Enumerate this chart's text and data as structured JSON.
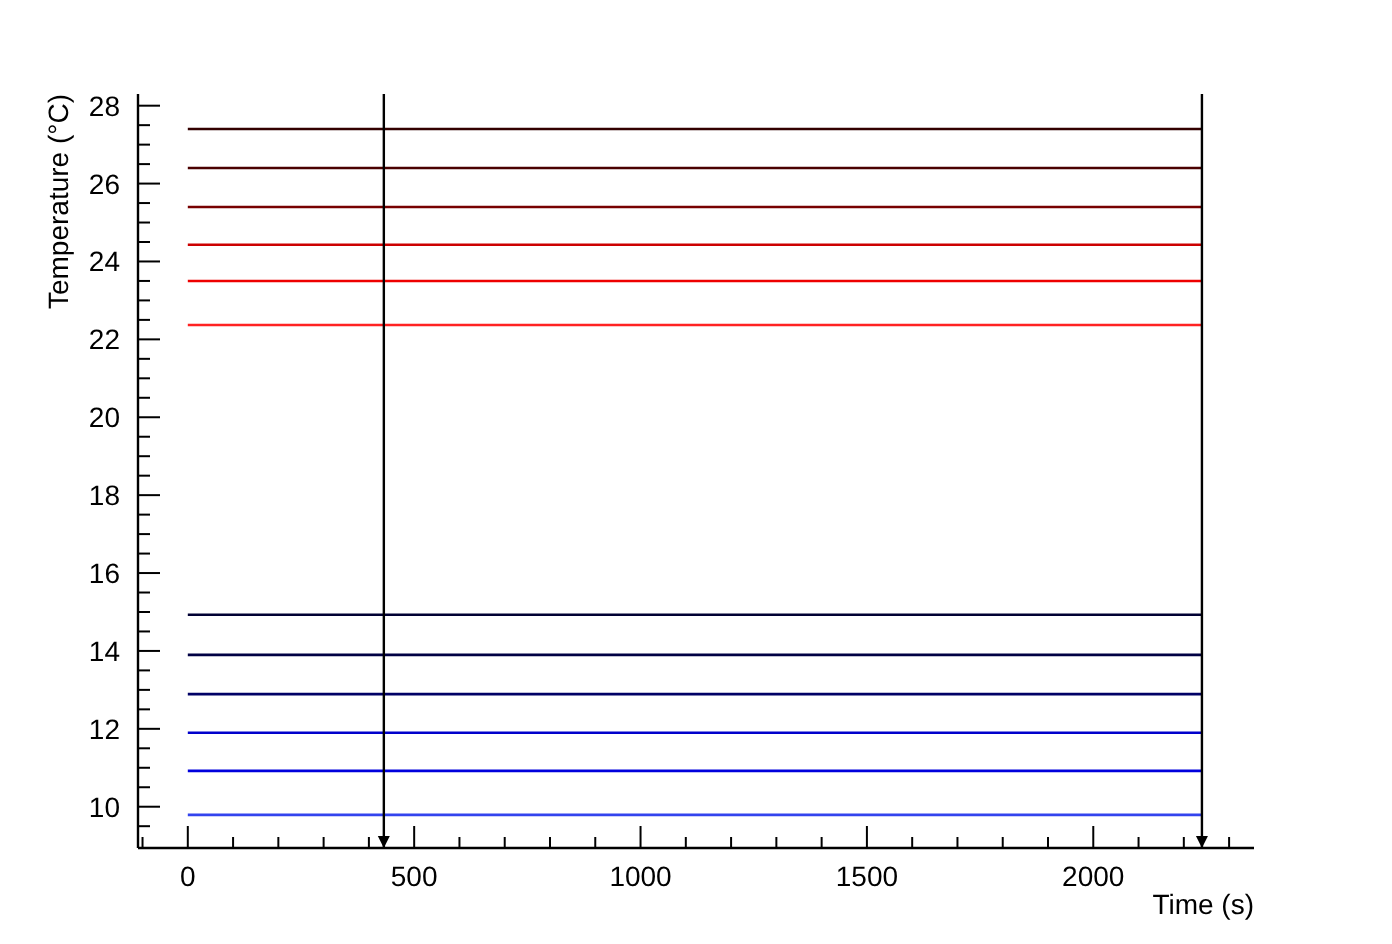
{
  "chart_data": {
    "type": "line",
    "xlabel": "Time (s)",
    "ylabel": "Temperature (°C)",
    "x": [
      0,
      2240
    ],
    "series": [
      {
        "color": "#330000",
        "values": [
          27.4,
          27.4
        ]
      },
      {
        "color": "#4a0000",
        "values": [
          26.4,
          26.4
        ]
      },
      {
        "color": "#770000",
        "values": [
          25.4,
          25.4
        ]
      },
      {
        "color": "#cc0000",
        "values": [
          24.43,
          24.43
        ]
      },
      {
        "color": "#ee0000",
        "values": [
          23.5,
          23.5
        ]
      },
      {
        "color": "#ff2222",
        "values": [
          22.37,
          22.37
        ]
      },
      {
        "color": "#000033",
        "values": [
          14.93,
          14.93
        ]
      },
      {
        "color": "#000044",
        "values": [
          13.9,
          13.9
        ]
      },
      {
        "color": "#000066",
        "values": [
          12.89,
          12.89
        ]
      },
      {
        "color": "#0000cc",
        "values": [
          11.9,
          11.9
        ]
      },
      {
        "color": "#0000dd",
        "values": [
          10.92,
          10.92
        ]
      },
      {
        "color": "#3344ee",
        "values": [
          9.79,
          9.79
        ]
      }
    ],
    "xlim": [
      -110,
      2355
    ],
    "ylim": [
      8.94,
      28.3
    ],
    "xticks": [
      {
        "value": -100,
        "label": null
      },
      0,
      {
        "value": 100,
        "label": null
      },
      {
        "value": 200,
        "label": null
      },
      {
        "value": 300,
        "label": null
      },
      {
        "value": 400,
        "label": null
      },
      500,
      {
        "value": 600,
        "label": null
      },
      {
        "value": 700,
        "label": null
      },
      {
        "value": 800,
        "label": null
      },
      {
        "value": 900,
        "label": null
      },
      1000,
      {
        "value": 1100,
        "label": null
      },
      {
        "value": 1200,
        "label": null
      },
      {
        "value": 1300,
        "label": null
      },
      {
        "value": 1400,
        "label": null
      },
      1500,
      {
        "value": 1600,
        "label": null
      },
      {
        "value": 1700,
        "label": null
      },
      {
        "value": 1800,
        "label": null
      },
      {
        "value": 1900,
        "label": null
      },
      2000,
      {
        "value": 2100,
        "label": null
      },
      {
        "value": 2200,
        "label": null
      },
      {
        "value": 2300,
        "label": null
      }
    ],
    "yticks": [
      {
        "value": 9.5,
        "label": null
      },
      10,
      {
        "value": 10.5,
        "label": null
      },
      {
        "value": 11,
        "label": null
      },
      {
        "value": 11.5,
        "label": null
      },
      12,
      {
        "value": 12.5,
        "label": null
      },
      {
        "value": 13,
        "label": null
      },
      {
        "value": 13.5,
        "label": null
      },
      14,
      {
        "value": 14.5,
        "label": null
      },
      {
        "value": 15,
        "label": null
      },
      {
        "value": 15.5,
        "label": null
      },
      16,
      {
        "value": 16.5,
        "label": null
      },
      {
        "value": 17,
        "label": null
      },
      {
        "value": 17.5,
        "label": null
      },
      18,
      {
        "value": 18.5,
        "label": null
      },
      {
        "value": 19,
        "label": null
      },
      {
        "value": 19.5,
        "label": null
      },
      20,
      {
        "value": 20.5,
        "label": null
      },
      {
        "value": 21,
        "label": null
      },
      {
        "value": 21.5,
        "label": null
      },
      22,
      {
        "value": 22.5,
        "label": null
      },
      {
        "value": 23,
        "label": null
      },
      {
        "value": 23.5,
        "label": null
      },
      24,
      {
        "value": 24.5,
        "label": null
      },
      {
        "value": 25,
        "label": null
      },
      {
        "value": 25.5,
        "label": null
      },
      26,
      {
        "value": 26.5,
        "label": null
      },
      {
        "value": 27,
        "label": null
      },
      {
        "value": 27.5,
        "label": null
      },
      28
    ],
    "ref_lines": [
      {
        "axis": "x",
        "value": 433,
        "color": "#000000"
      },
      {
        "axis": "x",
        "value": 2240,
        "color": "#000000"
      }
    ]
  }
}
